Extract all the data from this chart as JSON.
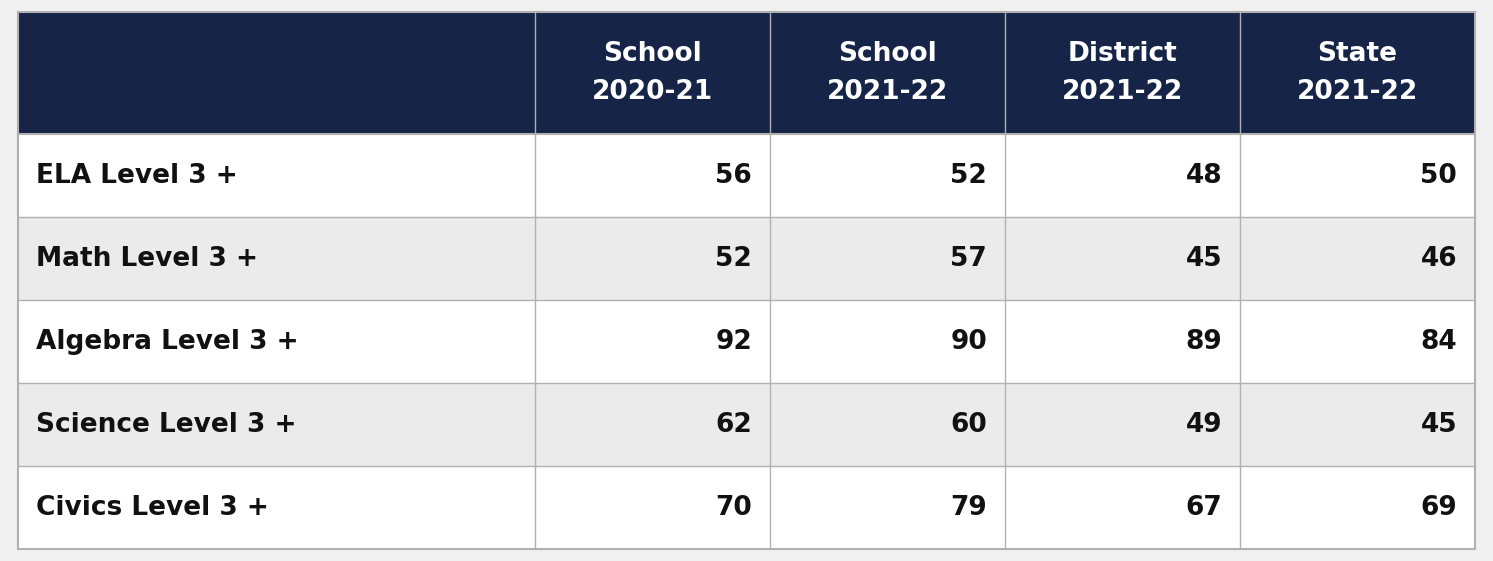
{
  "col_headers": [
    [
      "School\n2020-21"
    ],
    [
      "School\n2021-22"
    ],
    [
      "District\n2021-22"
    ],
    [
      "State\n2021-22"
    ]
  ],
  "rows": [
    [
      "ELA Level 3 +",
      56,
      52,
      48,
      50
    ],
    [
      "Math Level 3 +",
      52,
      57,
      45,
      46
    ],
    [
      "Algebra Level 3 +",
      92,
      90,
      89,
      84
    ],
    [
      "Science Level 3 +",
      62,
      60,
      49,
      45
    ],
    [
      "Civics Level 3 +",
      70,
      79,
      67,
      69
    ]
  ],
  "header_bg": "#162447",
  "header_text_color": "#ffffff",
  "row_bg_white": "#ffffff",
  "row_bg_gray": "#ebebeb",
  "row_text_color": "#111111",
  "border_color": "#b0b0b0",
  "fig_bg": "#f0f0f0"
}
